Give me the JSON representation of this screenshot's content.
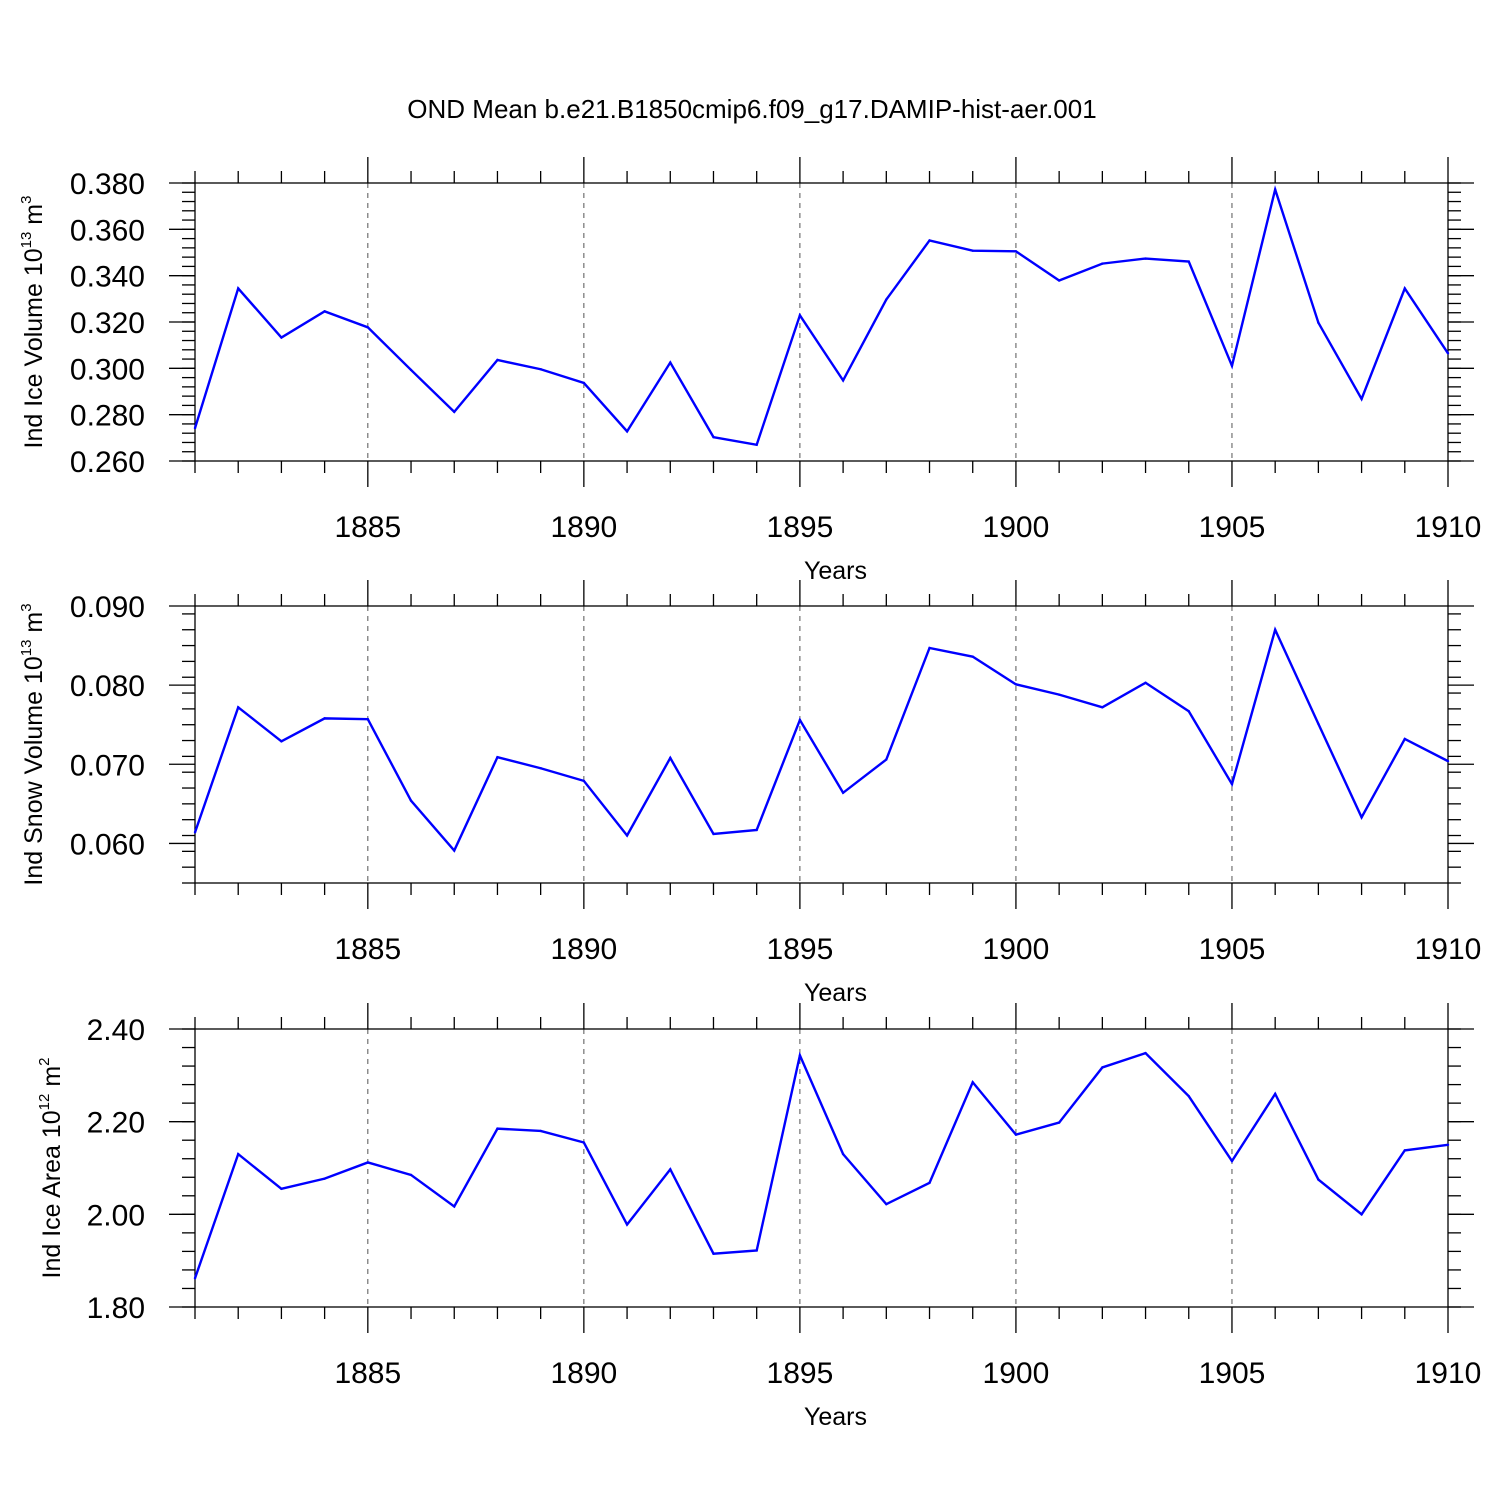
{
  "title": "OND Mean b.e21.B1850cmip6.f09_g17.DAMIP-hist-aer.001",
  "chart_data": [
    {
      "type": "line",
      "ylabel": {
        "main": "Ind Ice Volume 10",
        "sup": "13",
        "unit": " m",
        "unit_sup": "3"
      },
      "xlabel": "Years",
      "xlim": [
        1881,
        1910
      ],
      "ylim": [
        0.26,
        0.38
      ],
      "yticks": [
        0.26,
        0.28,
        0.3,
        0.32,
        0.34,
        0.36,
        0.38
      ],
      "ytick_labels": [
        "0.260",
        "0.280",
        "0.300",
        "0.320",
        "0.340",
        "0.360",
        "0.380"
      ],
      "xticks": [
        1885,
        1890,
        1895,
        1900,
        1905,
        1910
      ],
      "xtick_labels": [
        "1885",
        "1890",
        "1895",
        "1900",
        "1905",
        "1910"
      ],
      "grid": "dashed vertical at major x ticks",
      "color": "#0000ff",
      "x": [
        1881,
        1882,
        1883,
        1884,
        1885,
        1886,
        1887,
        1888,
        1889,
        1890,
        1891,
        1892,
        1893,
        1894,
        1895,
        1896,
        1897,
        1898,
        1899,
        1900,
        1901,
        1902,
        1903,
        1904,
        1905,
        1906,
        1907,
        1908,
        1909,
        1910
      ],
      "y": [
        0.2742,
        0.3345,
        0.3133,
        0.3246,
        0.3177,
        0.2993,
        0.2812,
        0.3036,
        0.2996,
        0.2937,
        0.2728,
        0.3025,
        0.2703,
        0.267,
        0.3229,
        0.2948,
        0.3297,
        0.3552,
        0.3508,
        0.3505,
        0.3379,
        0.3452,
        0.3474,
        0.3461,
        0.3011,
        0.3772,
        0.3197,
        0.2868,
        0.3345,
        0.3065
      ]
    },
    {
      "type": "line",
      "ylabel": {
        "main": "Ind Snow Volume 10",
        "sup": "13",
        "unit": " m",
        "unit_sup": "3"
      },
      "xlabel": "Years",
      "xlim": [
        1881,
        1910
      ],
      "ylim": [
        0.055,
        0.09
      ],
      "yticks": [
        0.06,
        0.07,
        0.08,
        0.09
      ],
      "ytick_labels": [
        "0.060",
        "0.070",
        "0.080",
        "0.090"
      ],
      "xticks": [
        1885,
        1890,
        1895,
        1900,
        1905,
        1910
      ],
      "xtick_labels": [
        "1885",
        "1890",
        "1895",
        "1900",
        "1905",
        "1910"
      ],
      "grid": "dashed vertical at major x ticks",
      "color": "#0000ff",
      "x": [
        1881,
        1882,
        1883,
        1884,
        1885,
        1886,
        1887,
        1888,
        1889,
        1890,
        1891,
        1892,
        1893,
        1894,
        1895,
        1896,
        1897,
        1898,
        1899,
        1900,
        1901,
        1902,
        1903,
        1904,
        1905,
        1906,
        1907,
        1908,
        1909,
        1910
      ],
      "y": [
        0.0614,
        0.0772,
        0.0729,
        0.0758,
        0.0757,
        0.0654,
        0.0591,
        0.0709,
        0.0695,
        0.0679,
        0.061,
        0.0708,
        0.0612,
        0.0617,
        0.0756,
        0.0664,
        0.0706,
        0.0847,
        0.0836,
        0.0801,
        0.0788,
        0.0772,
        0.0803,
        0.0767,
        0.0675,
        0.087,
        0.0751,
        0.0633,
        0.0732,
        0.0704
      ]
    },
    {
      "type": "line",
      "ylabel": {
        "main": "Ind Ice Area 10",
        "sup": "12",
        "unit": " m",
        "unit_sup": "2"
      },
      "xlabel": "Years",
      "xlim": [
        1881,
        1910
      ],
      "ylim": [
        1.8,
        2.4
      ],
      "yticks": [
        1.8,
        2.0,
        2.2,
        2.4
      ],
      "ytick_labels": [
        "1.80",
        "2.00",
        "2.20",
        "2.40"
      ],
      "xticks": [
        1885,
        1890,
        1895,
        1900,
        1905,
        1910
      ],
      "xtick_labels": [
        "1885",
        "1890",
        "1895",
        "1900",
        "1905",
        "1910"
      ],
      "grid": "dashed vertical at major x ticks",
      "color": "#0000ff",
      "x": [
        1881,
        1882,
        1883,
        1884,
        1885,
        1886,
        1887,
        1888,
        1889,
        1890,
        1891,
        1892,
        1893,
        1894,
        1895,
        1896,
        1897,
        1898,
        1899,
        1900,
        1901,
        1902,
        1903,
        1904,
        1905,
        1906,
        1907,
        1908,
        1909,
        1910
      ],
      "y": [
        1.862,
        2.13,
        2.055,
        2.077,
        2.112,
        2.085,
        2.017,
        2.185,
        2.18,
        2.155,
        1.978,
        2.097,
        1.915,
        1.922,
        2.343,
        2.13,
        2.022,
        2.068,
        2.285,
        2.172,
        2.198,
        2.317,
        2.348,
        2.255,
        2.115,
        2.26,
        2.075,
        2.0,
        2.138,
        2.15
      ]
    }
  ]
}
